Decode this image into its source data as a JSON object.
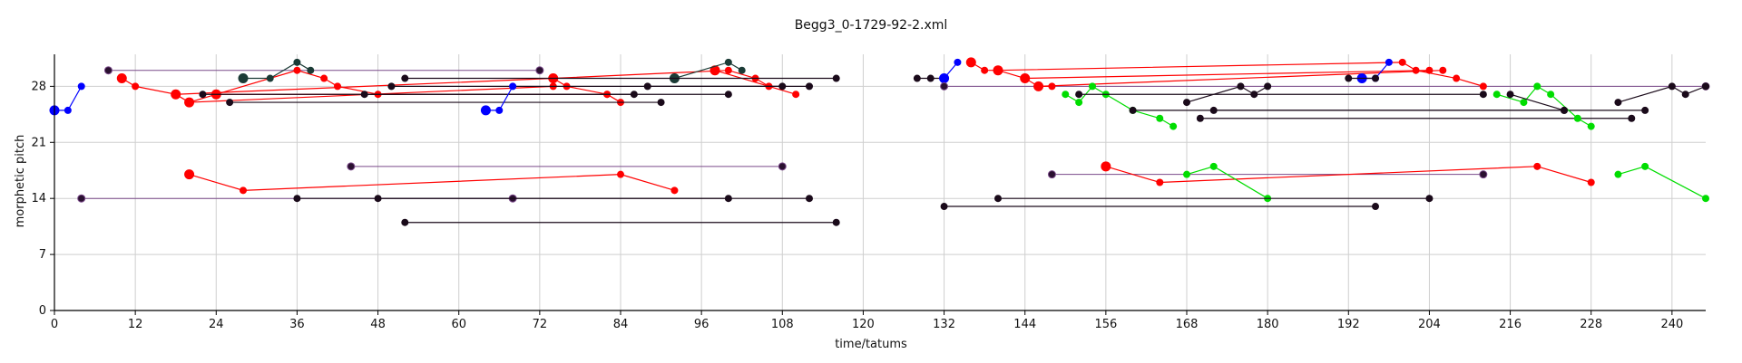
{
  "chart_data": {
    "type": "scatter",
    "title": "Begg3_0-1729-92-2.xml",
    "xlabel": "time/tatums",
    "ylabel": "morphetic pitch",
    "xlim": [
      0,
      245
    ],
    "ylim": [
      0,
      32
    ],
    "xticks": [
      0,
      12,
      24,
      36,
      48,
      60,
      72,
      84,
      96,
      108,
      120,
      132,
      144,
      156,
      168,
      180,
      192,
      204,
      216,
      228,
      240
    ],
    "yticks": [
      0,
      7,
      14,
      21,
      28
    ],
    "grid": true,
    "colors": {
      "blue": "#0000ff",
      "red": "#ff0000",
      "green": "#00dd00",
      "dark": "#1a0a1a",
      "teal": "#1b3b36",
      "purple_line": "#7a4a8a"
    },
    "series": [
      {
        "color": "blue",
        "points": [
          [
            0,
            25
          ],
          [
            2,
            25
          ],
          [
            4,
            28
          ]
        ]
      },
      {
        "color": "purple_line",
        "points": [
          [
            8,
            30
          ],
          [
            72,
            30
          ]
        ]
      },
      {
        "color": "red",
        "points": [
          [
            10,
            29
          ],
          [
            12,
            28
          ],
          [
            18,
            27
          ],
          [
            20,
            26
          ],
          [
            24,
            27
          ],
          [
            36,
            30
          ],
          [
            40,
            29
          ],
          [
            42,
            28
          ],
          [
            48,
            27
          ]
        ]
      },
      {
        "color": "red",
        "points": [
          [
            18,
            27
          ],
          [
            74,
            29
          ],
          [
            100,
            30
          ],
          [
            104,
            29
          ],
          [
            106,
            28
          ]
        ]
      },
      {
        "color": "red",
        "points": [
          [
            20,
            26
          ],
          [
            74,
            28
          ]
        ]
      },
      {
        "color": "red",
        "points": [
          [
            24,
            27
          ],
          [
            82,
            27
          ]
        ]
      },
      {
        "color": "red",
        "points": [
          [
            74,
            29
          ],
          [
            76,
            28
          ],
          [
            82,
            27
          ],
          [
            84,
            26
          ]
        ]
      },
      {
        "color": "red",
        "points": [
          [
            98,
            30
          ],
          [
            110,
            27
          ]
        ]
      },
      {
        "color": "teal",
        "points": [
          [
            28,
            29
          ],
          [
            32,
            29
          ],
          [
            36,
            31
          ],
          [
            38,
            30
          ]
        ]
      },
      {
        "color": "teal",
        "points": [
          [
            92,
            29
          ],
          [
            100,
            31
          ],
          [
            102,
            30
          ]
        ]
      },
      {
        "color": "dark",
        "points": [
          [
            22,
            27
          ],
          [
            100,
            27
          ]
        ]
      },
      {
        "color": "dark",
        "points": [
          [
            26,
            26
          ],
          [
            90,
            26
          ]
        ]
      },
      {
        "color": "dark",
        "points": [
          [
            46,
            27
          ],
          [
            86,
            27
          ]
        ]
      },
      {
        "color": "dark",
        "points": [
          [
            50,
            28
          ],
          [
            112,
            28
          ]
        ]
      },
      {
        "color": "dark",
        "points": [
          [
            52,
            29
          ],
          [
            116,
            29
          ]
        ]
      },
      {
        "color": "dark",
        "points": [
          [
            88,
            28
          ],
          [
            108,
            28
          ]
        ]
      },
      {
        "color": "blue",
        "points": [
          [
            64,
            25
          ],
          [
            66,
            25
          ],
          [
            68,
            28
          ]
        ]
      },
      {
        "color": "purple_line",
        "points": [
          [
            44,
            18
          ],
          [
            108,
            18
          ]
        ]
      },
      {
        "color": "purple_line",
        "points": [
          [
            4,
            14
          ],
          [
            68,
            14
          ]
        ]
      },
      {
        "color": "dark",
        "points": [
          [
            36,
            14
          ],
          [
            100,
            14
          ]
        ]
      },
      {
        "color": "dark",
        "points": [
          [
            48,
            14
          ],
          [
            112,
            14
          ]
        ]
      },
      {
        "color": "dark",
        "points": [
          [
            52,
            11
          ],
          [
            116,
            11
          ]
        ]
      },
      {
        "color": "red",
        "points": [
          [
            20,
            17
          ],
          [
            28,
            15
          ],
          [
            84,
            17
          ],
          [
            92,
            15
          ]
        ]
      },
      {
        "color": "dark",
        "points": [
          [
            128,
            29
          ],
          [
            130,
            29
          ],
          [
            132,
            29
          ]
        ]
      },
      {
        "color": "blue",
        "points": [
          [
            132,
            29
          ],
          [
            134,
            31
          ]
        ]
      },
      {
        "color": "purple_line",
        "points": [
          [
            132,
            28
          ],
          [
            245,
            28
          ]
        ]
      },
      {
        "color": "red",
        "points": [
          [
            136,
            31
          ],
          [
            138,
            30
          ],
          [
            140,
            30
          ],
          [
            144,
            29
          ],
          [
            146,
            28
          ],
          [
            148,
            28
          ]
        ]
      },
      {
        "color": "red",
        "points": [
          [
            140,
            30
          ],
          [
            200,
            31
          ],
          [
            202,
            30
          ],
          [
            208,
            29
          ],
          [
            212,
            28
          ]
        ]
      },
      {
        "color": "red",
        "points": [
          [
            144,
            29
          ],
          [
            204,
            30
          ]
        ]
      },
      {
        "color": "red",
        "points": [
          [
            146,
            28
          ],
          [
            206,
            30
          ]
        ]
      },
      {
        "color": "green",
        "points": [
          [
            150,
            27
          ],
          [
            152,
            26
          ],
          [
            154,
            28
          ],
          [
            156,
            27
          ],
          [
            160,
            25
          ],
          [
            164,
            24
          ],
          [
            166,
            23
          ]
        ]
      },
      {
        "color": "dark",
        "points": [
          [
            152,
            27
          ],
          [
            212,
            27
          ]
        ]
      },
      {
        "color": "dark",
        "points": [
          [
            160,
            25
          ],
          [
            224,
            25
          ]
        ]
      },
      {
        "color": "dark",
        "points": [
          [
            168,
            26
          ],
          [
            176,
            28
          ],
          [
            178,
            27
          ],
          [
            180,
            28
          ]
        ]
      },
      {
        "color": "dark",
        "points": [
          [
            172,
            25
          ],
          [
            236,
            25
          ]
        ]
      },
      {
        "color": "dark",
        "points": [
          [
            170,
            24
          ],
          [
            234,
            24
          ]
        ]
      },
      {
        "color": "blue",
        "points": [
          [
            194,
            29
          ],
          [
            196,
            29
          ],
          [
            198,
            31
          ]
        ]
      },
      {
        "color": "dark",
        "points": [
          [
            192,
            29
          ],
          [
            196,
            29
          ]
        ]
      },
      {
        "color": "green",
        "points": [
          [
            214,
            27
          ],
          [
            218,
            26
          ],
          [
            220,
            28
          ],
          [
            222,
            27
          ],
          [
            226,
            24
          ],
          [
            228,
            23
          ]
        ]
      },
      {
        "color": "dark",
        "points": [
          [
            216,
            27
          ],
          [
            224,
            25
          ]
        ]
      },
      {
        "color": "dark",
        "points": [
          [
            232,
            26
          ],
          [
            240,
            28
          ],
          [
            242,
            27
          ],
          [
            245,
            28
          ]
        ]
      },
      {
        "color": "purple_line",
        "points": [
          [
            148,
            17
          ],
          [
            212,
            17
          ]
        ]
      },
      {
        "color": "red",
        "points": [
          [
            156,
            18
          ],
          [
            164,
            16
          ],
          [
            220,
            18
          ],
          [
            228,
            16
          ]
        ]
      },
      {
        "color": "green",
        "points": [
          [
            168,
            17
          ],
          [
            172,
            18
          ],
          [
            180,
            14
          ]
        ]
      },
      {
        "color": "green",
        "points": [
          [
            232,
            17
          ],
          [
            236,
            18
          ],
          [
            245,
            14
          ]
        ]
      },
      {
        "color": "dark",
        "points": [
          [
            132,
            13
          ],
          [
            196,
            13
          ]
        ]
      },
      {
        "color": "dark",
        "points": [
          [
            140,
            14
          ],
          [
            204,
            14
          ]
        ]
      }
    ]
  }
}
